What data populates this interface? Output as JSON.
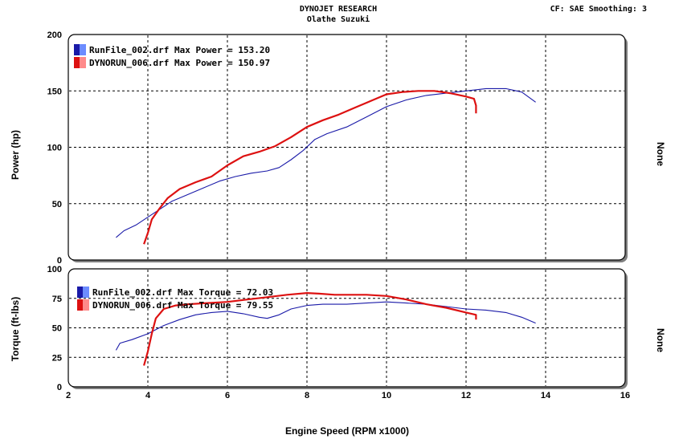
{
  "header": {
    "company": "DYNOJET RESEARCH",
    "shop": "Olathe Suzuki",
    "settings": "CF: SAE  Smoothing: 3"
  },
  "colors": {
    "run_a": "#1a1aa8",
    "run_b": "#dd1111",
    "panel_bg": "#ffffff",
    "frame": "#000000"
  },
  "chart_data": [
    {
      "type": "line",
      "ylabel": "Power (hp)",
      "right_label": "None",
      "xlim": [
        2,
        16
      ],
      "ylim": [
        0,
        200
      ],
      "yticks": [
        "0",
        "50",
        "100",
        "150",
        "200"
      ],
      "legend": [
        "RunFile_002.drf Max Power = 153.20",
        "DYNORUN_006.drf Max Power = 150.97"
      ],
      "series": [
        {
          "name": "RunFile_002.drf",
          "color": "#1a1aa8",
          "x": [
            3.2,
            3.4,
            3.7,
            4.0,
            4.3,
            4.6,
            5.0,
            5.4,
            5.8,
            6.2,
            6.6,
            7.0,
            7.3,
            7.6,
            7.9,
            8.2,
            8.5,
            9.0,
            9.5,
            10.0,
            10.5,
            11.0,
            11.5,
            12.0,
            12.5,
            13.0,
            13.4,
            13.75
          ],
          "y": [
            20,
            26,
            31,
            38,
            45,
            52,
            58,
            64,
            70,
            74,
            77,
            79,
            82,
            89,
            97,
            107,
            112,
            118,
            127,
            136,
            142,
            146,
            148,
            150,
            152,
            152,
            149,
            140
          ]
        },
        {
          "name": "DYNORUN_006.drf",
          "color": "#dd1111",
          "x": [
            3.9,
            4.0,
            4.1,
            4.3,
            4.5,
            4.8,
            5.2,
            5.6,
            6.0,
            6.4,
            6.8,
            7.2,
            7.6,
            8.0,
            8.4,
            8.8,
            9.2,
            9.6,
            10.0,
            10.4,
            10.8,
            11.2,
            11.6,
            12.0,
            12.2,
            12.25,
            12.25
          ],
          "y": [
            14,
            24,
            36,
            46,
            55,
            63,
            69,
            74,
            84,
            92,
            96,
            101,
            109,
            118,
            124,
            129,
            135,
            141,
            147,
            149,
            150,
            150,
            148,
            145,
            143,
            137,
            130
          ]
        }
      ]
    },
    {
      "type": "line",
      "ylabel": "Torque (ft-lbs)",
      "right_label": "None",
      "xlabel": "Engine Speed (RPM x1000)",
      "xlim": [
        2,
        16
      ],
      "ylim": [
        0,
        100
      ],
      "xticks": [
        "2",
        "4",
        "6",
        "8",
        "10",
        "12",
        "14",
        "16"
      ],
      "yticks": [
        "0",
        "25",
        "50",
        "75",
        "100"
      ],
      "legend": [
        "RunFile_002.drf Max Torque = 72.03",
        "DYNORUN_006.drf Max Torque = 79.55"
      ],
      "series": [
        {
          "name": "RunFile_002.drf",
          "color": "#1a1aa8",
          "x": [
            3.2,
            3.3,
            3.6,
            4.0,
            4.4,
            4.8,
            5.2,
            5.6,
            6.0,
            6.4,
            6.8,
            7.0,
            7.3,
            7.6,
            8.0,
            8.4,
            9.0,
            9.5,
            10.0,
            10.5,
            11.0,
            11.5,
            12.0,
            12.5,
            13.0,
            13.4,
            13.75
          ],
          "y": [
            31,
            37,
            40,
            45,
            52,
            57,
            61,
            63,
            64,
            62,
            59,
            58,
            61,
            66,
            69,
            70,
            70,
            71,
            72,
            71,
            70,
            68,
            66,
            65,
            63,
            59,
            54
          ]
        },
        {
          "name": "DYNORUN_006.drf",
          "color": "#dd1111",
          "x": [
            3.9,
            4.0,
            4.1,
            4.2,
            4.4,
            4.7,
            5.0,
            5.5,
            6.0,
            6.5,
            7.0,
            7.5,
            8.0,
            8.3,
            8.7,
            9.0,
            9.5,
            10.0,
            10.5,
            11.0,
            11.5,
            12.0,
            12.25,
            12.25
          ],
          "y": [
            18,
            30,
            45,
            58,
            66,
            69,
            70,
            71,
            72,
            74,
            76,
            78,
            79.5,
            79,
            78,
            78,
            78,
            77,
            74,
            70,
            67,
            63,
            61,
            57
          ]
        }
      ]
    }
  ]
}
